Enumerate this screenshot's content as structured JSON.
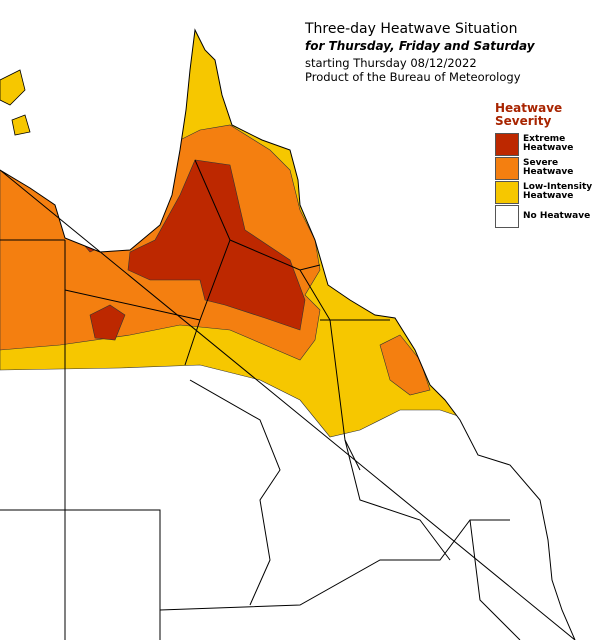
{
  "title": "Three-day Heatwave Situation",
  "subtitle": "for Thursday, Friday and Saturday",
  "lines": [
    "starting Thursday 08/12/2022",
    "Product of the Bureau of Meteorology"
  ],
  "legend": {
    "title": "Heatwave Severity",
    "items": [
      {
        "label": "Extreme Heatwave",
        "color": "#bd2800"
      },
      {
        "label": "Severe Heatwave",
        "color": "#f47f10"
      },
      {
        "label": "Low-Intensity Heatwave",
        "color": "#f6c700"
      },
      {
        "label": "No Heatwave",
        "color": "#ffffff"
      }
    ]
  }
}
